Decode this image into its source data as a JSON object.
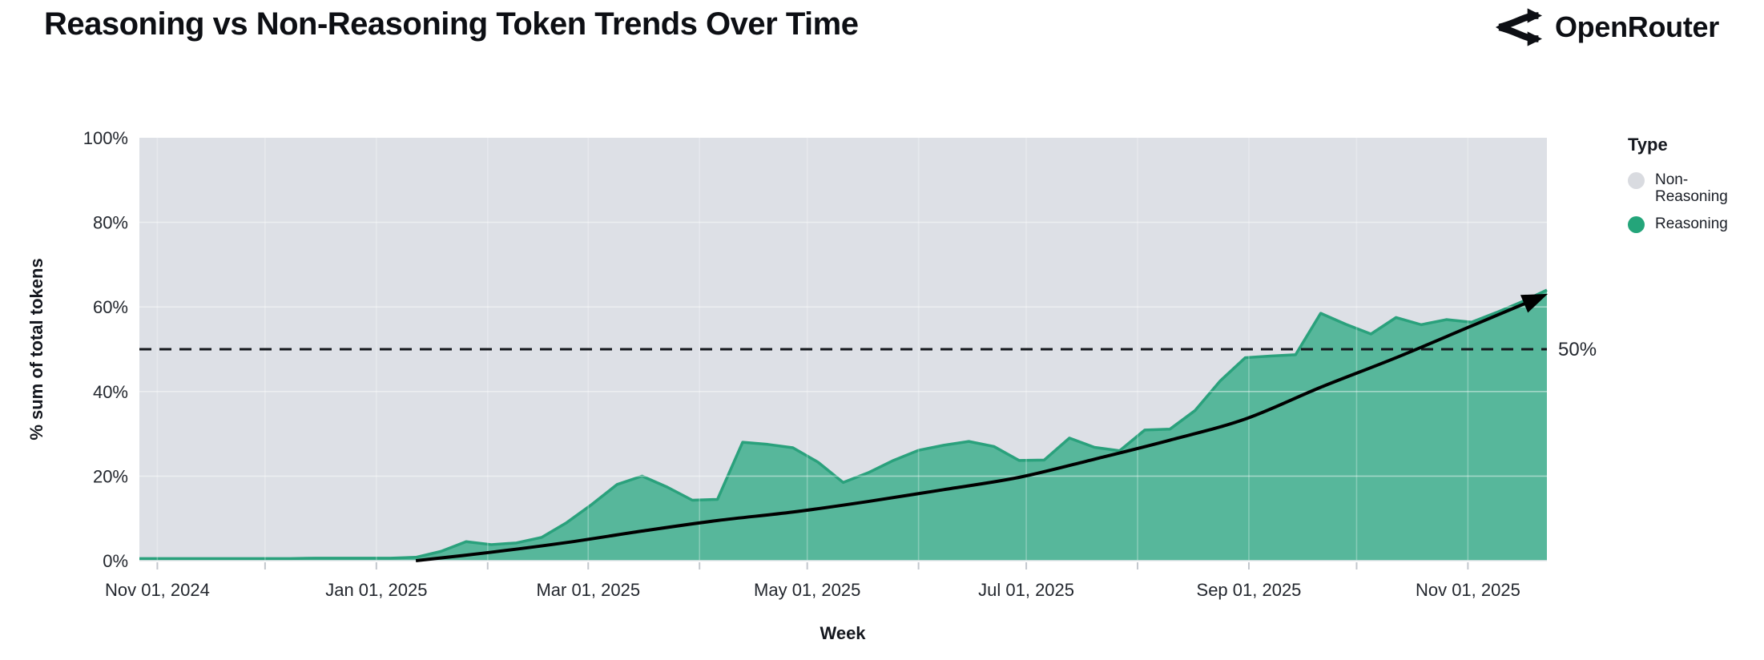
{
  "header": {
    "title": "Reasoning vs Non-Reasoning Token Trends Over Time",
    "brand": "OpenRouter",
    "logo_icon": "openrouter-fork-arrows-icon"
  },
  "legend": {
    "title": "Type",
    "items": [
      {
        "label": "Non-Reasoning",
        "color": "#d9dbe0"
      },
      {
        "label": "Reasoning",
        "color": "#24a57a"
      }
    ]
  },
  "chart_data": {
    "type": "area",
    "variant": "100%-stacked-weekly",
    "title": "Reasoning vs Non-Reasoning Token Trends Over Time",
    "xlabel": "Week",
    "ylabel": "% sum of total tokens",
    "ylim": [
      0,
      100
    ],
    "grid": "on",
    "legend_position": "right",
    "y_ticks": [
      {
        "value": 0,
        "label": "0%"
      },
      {
        "value": 20,
        "label": "20%"
      },
      {
        "value": 40,
        "label": "40%"
      },
      {
        "value": 60,
        "label": "60%"
      },
      {
        "value": 80,
        "label": "80%"
      },
      {
        "value": 100,
        "label": "100%"
      }
    ],
    "x_range_days": 392,
    "x_ticks_major": [
      {
        "label": "Nov 01, 2024",
        "day": 5
      },
      {
        "label": "Jan 01, 2025",
        "day": 66
      },
      {
        "label": "Mar 01, 2025",
        "day": 125
      },
      {
        "label": "May 01, 2025",
        "day": 186
      },
      {
        "label": "Jul 01, 2025",
        "day": 247
      },
      {
        "label": "Sep 01, 2025",
        "day": 309
      },
      {
        "label": "Nov 01, 2025",
        "day": 370
      }
    ],
    "x_ticks_minor_days": [
      5,
      35,
      66,
      97,
      125,
      156,
      186,
      217,
      247,
      278,
      309,
      339,
      370
    ],
    "gridline_values_y": [
      20,
      40,
      60,
      80
    ],
    "series": [
      {
        "name": "Non-Reasoning",
        "role": "remainder-to-100%",
        "fill": "#dde0e6"
      },
      {
        "name": "Reasoning",
        "fill": "#57b79b",
        "stroke": "#2aa17c",
        "cadence": "weekly",
        "values_pct": [
          0.5,
          0.5,
          0.5,
          0.5,
          0.5,
          0.5,
          0.5,
          0.6,
          0.6,
          0.6,
          0.6,
          0.8,
          2.2,
          4.5,
          3.8,
          4.2,
          5.5,
          9,
          13.3,
          18,
          20,
          17.4,
          14.3,
          14.5,
          28,
          27.5,
          26.7,
          23.3,
          18.5,
          20.8,
          23.7,
          26.1,
          27.3,
          28.2,
          27,
          23.7,
          23.8,
          29,
          26.8,
          26,
          30.9,
          31.1,
          35.5,
          42.5,
          48,
          48.4,
          48.7,
          58.5,
          55.9,
          53.6,
          57.5,
          55.8,
          57,
          56.4,
          58.7,
          61.2,
          64
        ]
      }
    ],
    "annotation_50": {
      "value": 50,
      "label": "50%",
      "style": "dashed"
    },
    "trend_arrow": {
      "style": "black-curved-arrow",
      "samples_week_pct": [
        [
          11,
          0
        ],
        [
          14,
          2
        ],
        [
          17,
          4.3
        ],
        [
          20,
          7
        ],
        [
          23,
          9.5
        ],
        [
          26,
          11.5
        ],
        [
          29,
          14
        ],
        [
          32,
          16.8
        ],
        [
          35,
          19.7
        ],
        [
          38,
          24
        ],
        [
          41,
          28.5
        ],
        [
          44,
          33.5
        ],
        [
          47,
          41
        ],
        [
          50,
          48
        ],
        [
          53,
          55.5
        ],
        [
          55.8,
          62.5
        ]
      ]
    }
  }
}
